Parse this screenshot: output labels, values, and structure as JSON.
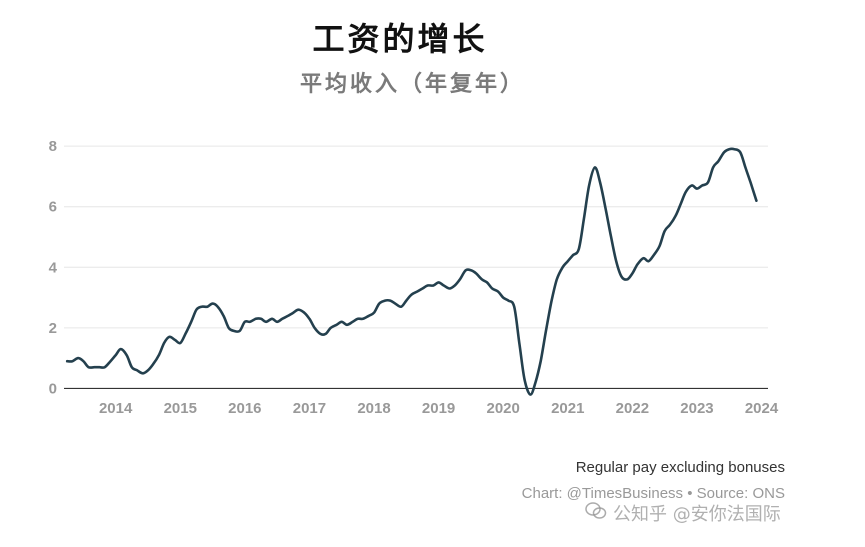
{
  "title": "工资的增长",
  "subtitle": "平均收入（年复年）",
  "note": "Regular pay excluding bonuses",
  "source": "Chart: @TimesBusiness • Source: ONS",
  "watermark": {
    "icon": "wechat-icon",
    "text": "公知乎 @安你法国际"
  },
  "colors": {
    "line": "#24404e",
    "grid": "#e6e6e6",
    "axis": "#333333",
    "tick": "#999999"
  },
  "chart_data": {
    "type": "line",
    "title": "工资的增长",
    "subtitle": "平均收入（年复年）",
    "xlabel": "",
    "ylabel": "",
    "xlim": [
      2013.2,
      2024.1
    ],
    "ylim": [
      -0.25,
      8.6
    ],
    "x_ticks": [
      2014,
      2015,
      2016,
      2017,
      2018,
      2019,
      2020,
      2021,
      2022,
      2023,
      2024
    ],
    "y_ticks": [
      0,
      2,
      4,
      6,
      8
    ],
    "grid": true,
    "series": [
      {
        "x": [
          2013.25,
          2013.33,
          2013.42,
          2013.5,
          2013.58,
          2013.67,
          2013.75,
          2013.83,
          2013.92,
          2014.0,
          2014.08,
          2014.17,
          2014.25,
          2014.33,
          2014.42,
          2014.5,
          2014.58,
          2014.67,
          2014.75,
          2014.83,
          2014.92,
          2015.0,
          2015.08,
          2015.17,
          2015.25,
          2015.33,
          2015.42,
          2015.5,
          2015.58,
          2015.67,
          2015.75,
          2015.83,
          2015.92,
          2016.0,
          2016.08,
          2016.17,
          2016.25,
          2016.33,
          2016.42,
          2016.5,
          2016.58,
          2016.67,
          2016.75,
          2016.83,
          2016.92,
          2017.0,
          2017.08,
          2017.17,
          2017.25,
          2017.33,
          2017.42,
          2017.5,
          2017.58,
          2017.67,
          2017.75,
          2017.83,
          2017.92,
          2018.0,
          2018.08,
          2018.17,
          2018.25,
          2018.33,
          2018.42,
          2018.5,
          2018.58,
          2018.67,
          2018.75,
          2018.83,
          2018.92,
          2019.0,
          2019.08,
          2019.17,
          2019.25,
          2019.33,
          2019.42,
          2019.5,
          2019.58,
          2019.67,
          2019.75,
          2019.83,
          2019.92,
          2020.0,
          2020.08,
          2020.17,
          2020.25,
          2020.33,
          2020.42,
          2020.5,
          2020.58,
          2020.67,
          2020.75,
          2020.83,
          2020.92,
          2021.0,
          2021.08,
          2021.17,
          2021.25,
          2021.33,
          2021.42,
          2021.5,
          2021.58,
          2021.67,
          2021.75,
          2021.83,
          2021.92,
          2022.0,
          2022.08,
          2022.17,
          2022.25,
          2022.33,
          2022.42,
          2022.5,
          2022.58,
          2022.67,
          2022.75,
          2022.83,
          2022.92,
          2023.0,
          2023.08,
          2023.17,
          2023.25,
          2023.33,
          2023.42,
          2023.5,
          2023.58,
          2023.67,
          2023.75,
          2023.83,
          2023.92
        ],
        "values": [
          0.9,
          0.9,
          1.0,
          0.9,
          0.7,
          0.7,
          0.7,
          0.7,
          0.9,
          1.1,
          1.3,
          1.1,
          0.7,
          0.6,
          0.5,
          0.6,
          0.8,
          1.1,
          1.5,
          1.7,
          1.6,
          1.5,
          1.8,
          2.2,
          2.6,
          2.7,
          2.7,
          2.8,
          2.7,
          2.4,
          2.0,
          1.9,
          1.9,
          2.2,
          2.2,
          2.3,
          2.3,
          2.2,
          2.3,
          2.2,
          2.3,
          2.4,
          2.5,
          2.6,
          2.5,
          2.3,
          2.0,
          1.8,
          1.8,
          2.0,
          2.1,
          2.2,
          2.1,
          2.2,
          2.3,
          2.3,
          2.4,
          2.5,
          2.8,
          2.9,
          2.9,
          2.8,
          2.7,
          2.9,
          3.1,
          3.2,
          3.3,
          3.4,
          3.4,
          3.5,
          3.4,
          3.3,
          3.4,
          3.6,
          3.9,
          3.9,
          3.8,
          3.6,
          3.5,
          3.3,
          3.2,
          3.0,
          2.9,
          2.7,
          1.5,
          0.3,
          -0.2,
          0.2,
          0.9,
          2.0,
          2.9,
          3.6,
          4.0,
          4.2,
          4.4,
          4.6,
          5.6,
          6.7,
          7.3,
          6.8,
          6.0,
          5.0,
          4.2,
          3.7,
          3.6,
          3.8,
          4.1,
          4.3,
          4.2,
          4.4,
          4.7,
          5.2,
          5.4,
          5.7,
          6.1,
          6.5,
          6.7,
          6.6,
          6.7,
          6.8,
          7.3,
          7.5,
          7.8,
          7.9,
          7.9,
          7.8,
          7.3,
          6.8,
          6.2
        ]
      }
    ]
  }
}
